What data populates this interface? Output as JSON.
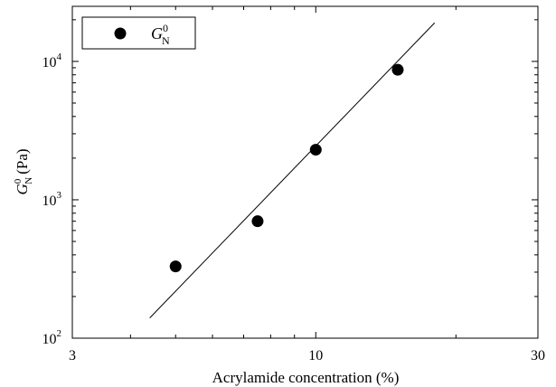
{
  "chart_data": {
    "type": "scatter",
    "title": "",
    "xscale": "log",
    "yscale": "log",
    "xlim": [
      3,
      30
    ],
    "ylim": [
      100,
      25000
    ],
    "xticks": [
      3,
      10,
      30
    ],
    "xtick_labels": [
      "3",
      "10",
      "30"
    ],
    "yticks": [
      100,
      1000,
      10000
    ],
    "ytick_labels": [
      {
        "base": "10",
        "exp": "2"
      },
      {
        "base": "10",
        "exp": "3"
      },
      {
        "base": "10",
        "exp": "4"
      }
    ],
    "xlabel": "Acrylamide concentration (%)",
    "ylabel": {
      "symbol": "G",
      "superscript": "0",
      "subscript": "N",
      "unit": "(Pa)"
    },
    "grid": false,
    "legend_position": "top-left",
    "series": [
      {
        "name": {
          "symbol": "G",
          "superscript": "0",
          "subscript": "N"
        },
        "marker": "circle",
        "color": "#000000",
        "points": [
          {
            "x": 5,
            "y": 330
          },
          {
            "x": 7.5,
            "y": 700
          },
          {
            "x": 10,
            "y": 2300
          },
          {
            "x": 15,
            "y": 8700
          }
        ]
      }
    ],
    "fit_line": {
      "color": "#000000",
      "points": [
        {
          "x": 4.4,
          "y": 140
        },
        {
          "x": 18,
          "y": 19000
        }
      ]
    }
  }
}
